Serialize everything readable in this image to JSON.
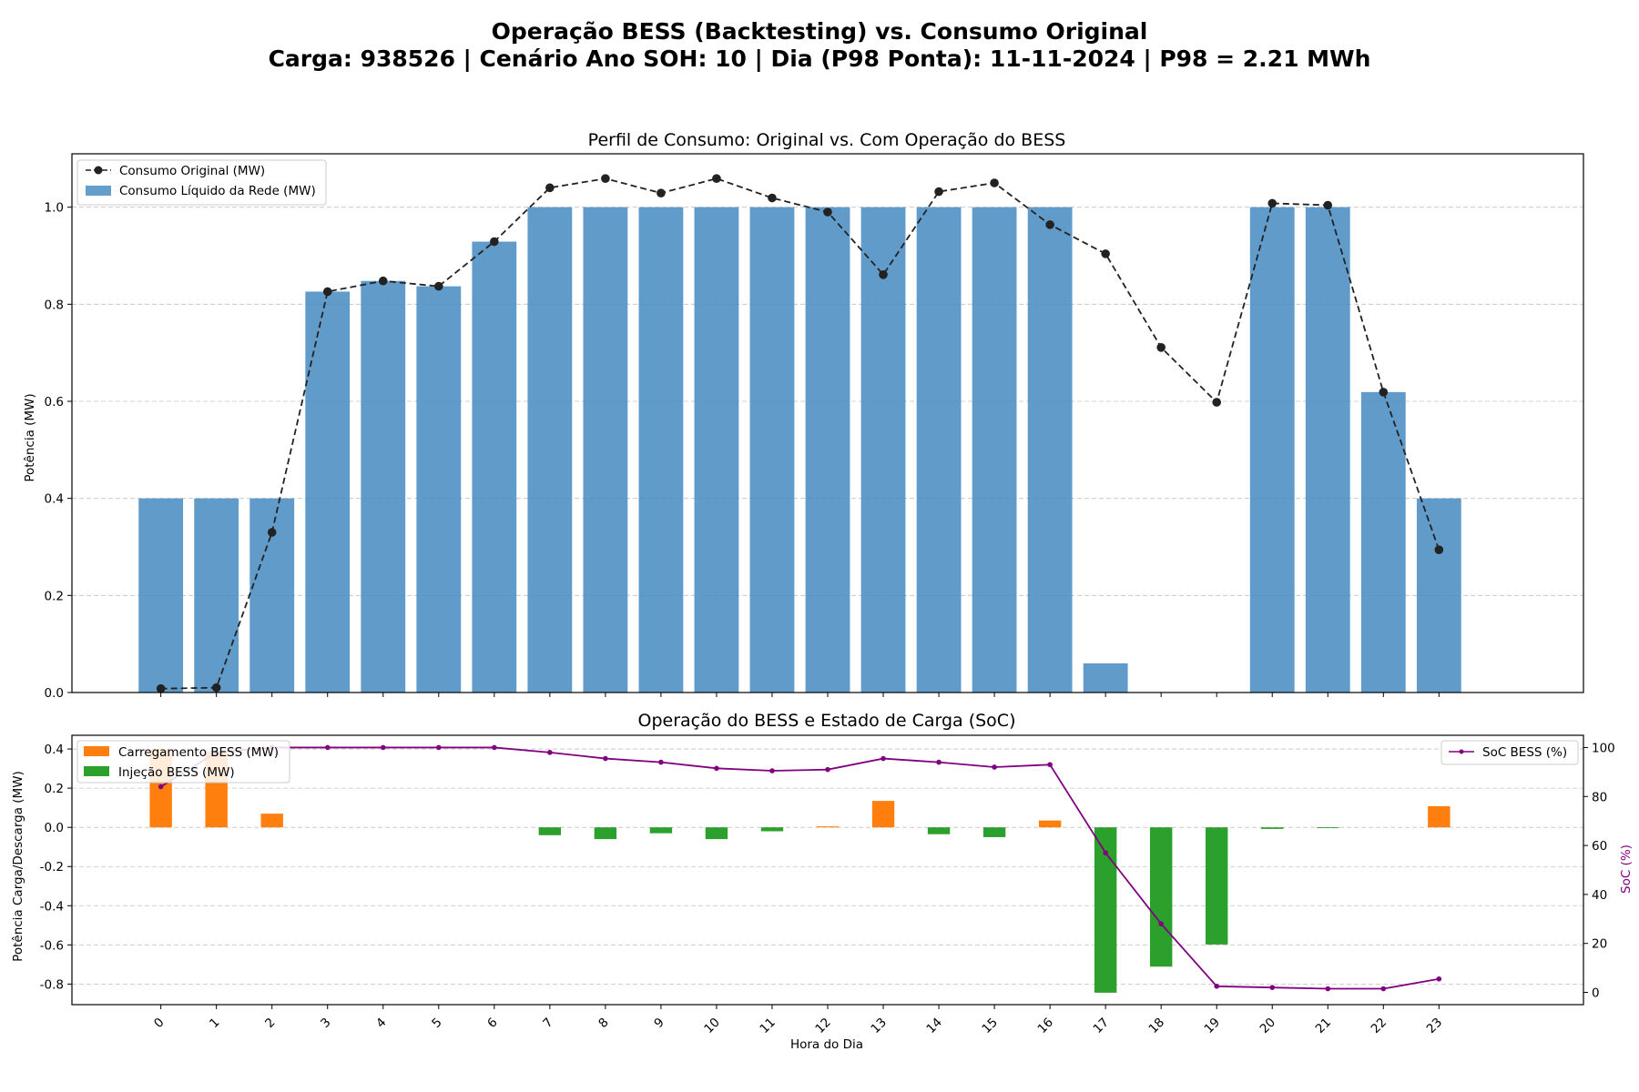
{
  "suptitle": {
    "line1": "Operação BESS (Backtesting) vs. Consumo Original",
    "line2": "Carga: 938526 | Cenário Ano SOH: 10 | Dia (P98 Ponta): 11-11-2024 | P98 = 2.21 MWh"
  },
  "colors": {
    "net_bar": "#4a8cc2",
    "original_line": "#222222",
    "charge_bar": "#ff7f0e",
    "discharge_bar": "#2ca02c",
    "soc_line": "#800080",
    "soc_axis_label": "#800080",
    "grid": "#b0b0b0"
  },
  "chart_data": [
    {
      "type": "bar",
      "title": "Perfil de Consumo: Original vs. Com Operação do BESS",
      "xlabel": "",
      "ylabel": "Potência (MW)",
      "ylim": [
        0,
        1.11
      ],
      "yticks": [
        0.0,
        0.2,
        0.4,
        0.6,
        0.8,
        1.0
      ],
      "grid": "y-dashed",
      "legend": "top-left",
      "x": [
        0,
        1,
        2,
        3,
        4,
        5,
        6,
        7,
        8,
        9,
        10,
        11,
        12,
        13,
        14,
        15,
        16,
        17,
        18,
        19,
        20,
        21,
        22,
        23
      ],
      "series": [
        {
          "name": "Consumo Original (MW)",
          "kind": "line-dashed-markers",
          "values": [
            0.008,
            0.01,
            0.33,
            0.826,
            0.848,
            0.837,
            0.929,
            1.04,
            1.059,
            1.029,
            1.059,
            1.019,
            0.99,
            0.861,
            1.032,
            1.05,
            0.964,
            0.904,
            0.711,
            0.598,
            1.008,
            1.004,
            0.619,
            0.294
          ]
        },
        {
          "name": "Consumo Líquido da Rede (MW)",
          "kind": "bar",
          "values": [
            0.4,
            0.4,
            0.4,
            0.826,
            0.848,
            0.837,
            0.929,
            1.0,
            1.0,
            1.0,
            1.0,
            1.0,
            1.0,
            1.0,
            1.0,
            1.0,
            1.0,
            0.06,
            0.0,
            0.0,
            1.0,
            1.0,
            0.619,
            0.4
          ]
        }
      ]
    },
    {
      "type": "bar",
      "title": "Operação do BESS e Estado de Carga (SoC)",
      "xlabel": "Hora do Dia",
      "ylabel": "Potência Carga/Descarga (MW)",
      "ylim": [
        -0.905,
        0.47
      ],
      "yticks": [
        -0.8,
        -0.6,
        -0.4,
        -0.2,
        0.0,
        0.2,
        0.4
      ],
      "y2label": "SoC (%)",
      "y2lim": [
        -5,
        105
      ],
      "y2ticks": [
        0,
        20,
        40,
        60,
        80,
        100
      ],
      "grid": "y-dashed",
      "legend": "top-left",
      "legend2": "top-right",
      "categories": [
        "0",
        "1",
        "2",
        "3",
        "4",
        "5",
        "6",
        "7",
        "8",
        "9",
        "10",
        "11",
        "12",
        "13",
        "14",
        "15",
        "16",
        "17",
        "18",
        "19",
        "20",
        "21",
        "22",
        "23"
      ],
      "series": [
        {
          "name": "Carregamento BESS (MW)",
          "kind": "bar",
          "values": [
            0.4,
            0.39,
            0.07,
            0,
            0,
            0,
            0,
            0,
            0,
            0,
            0,
            0,
            0.005,
            0.135,
            0,
            0,
            0.035,
            0,
            0,
            0,
            0,
            0,
            0,
            0.108
          ]
        },
        {
          "name": "Injeção BESS (MW)",
          "kind": "bar",
          "values": [
            0,
            0,
            0,
            0,
            0,
            0,
            0,
            -0.04,
            -0.06,
            -0.03,
            -0.06,
            -0.02,
            0,
            0,
            -0.035,
            -0.05,
            0,
            -0.844,
            -0.711,
            -0.598,
            -0.008,
            -0.004,
            0,
            0
          ]
        },
        {
          "name": "SoC BESS (%)",
          "kind": "line-markers",
          "axis": "right",
          "values": [
            84,
            98,
            100,
            100,
            100,
            100,
            100,
            98,
            95.5,
            94,
            91.5,
            90.5,
            91,
            95.5,
            94,
            92,
            93,
            57,
            28,
            2.5,
            2,
            1.5,
            1.5,
            5.5
          ]
        }
      ]
    }
  ]
}
